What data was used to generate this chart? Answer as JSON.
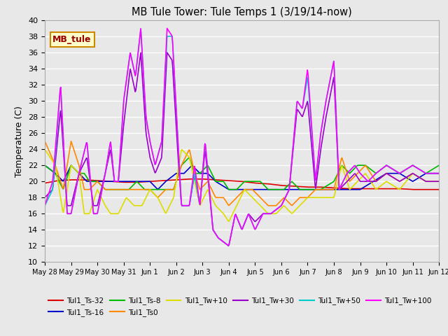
{
  "title": "MB Tule Tower: Tule Temps 1 (3/19/14-now)",
  "ylabel": "Temperature (C)",
  "ylim": [
    10,
    40
  ],
  "yticks": [
    10,
    12,
    14,
    16,
    18,
    20,
    22,
    24,
    26,
    28,
    30,
    32,
    34,
    36,
    38,
    40
  ],
  "x_labels": [
    "May 28",
    "May 29",
    "May 30",
    "May 31",
    "Jun 1",
    "Jun 2",
    "Jun 3",
    "Jun 4",
    "Jun 5",
    "Jun 6",
    "Jun 7",
    "Jun 8",
    "Jun 9",
    "Jun 10",
    "Jun 11",
    "Jun 12"
  ],
  "colors": {
    "Tul1_Ts-32": "#dd0000",
    "Tul1_Ts-16": "#0000cc",
    "Tul1_Ts-8": "#00bb00",
    "Tul1_Ts0": "#ff8800",
    "Tul1_Tw+10": "#dddd00",
    "Tul1_Tw+30": "#9900cc",
    "Tul1_Tw+50": "#00cccc",
    "Tul1_Tw+100": "#ff00ff"
  },
  "legend_label": "MB_tule",
  "legend_bg": "#ffffcc",
  "legend_edge": "#cc8800",
  "legend_text_color": "#990000",
  "fig_bg": "#e8e8e8",
  "plot_bg": "#e8e8e8",
  "grid_color": "#ffffff"
}
